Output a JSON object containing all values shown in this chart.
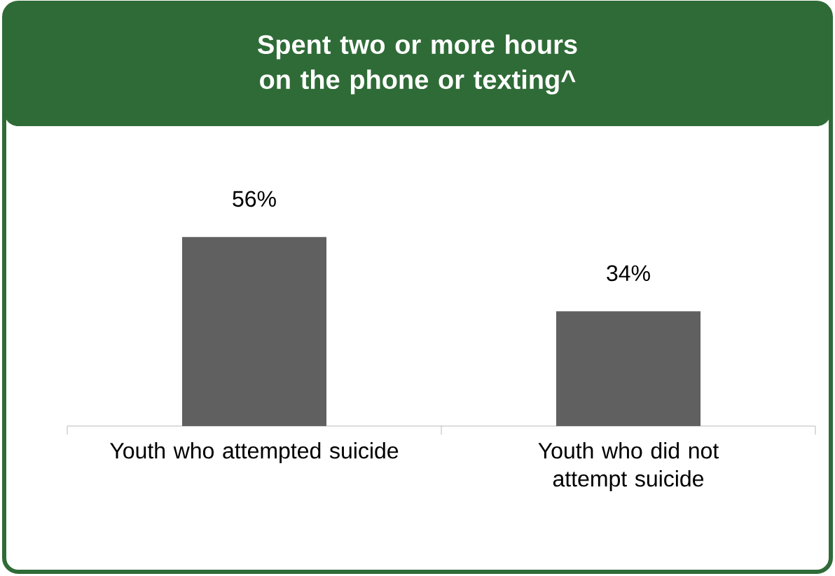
{
  "chart_data": {
    "type": "bar",
    "title": "Spent two or more hours on the phone or texting^",
    "categories": [
      "Youth who attempted suicide",
      "Youth who did not attempt suicide"
    ],
    "values": [
      56,
      34
    ],
    "value_labels": [
      "56%",
      "34%"
    ],
    "color": "#606060"
  }
}
